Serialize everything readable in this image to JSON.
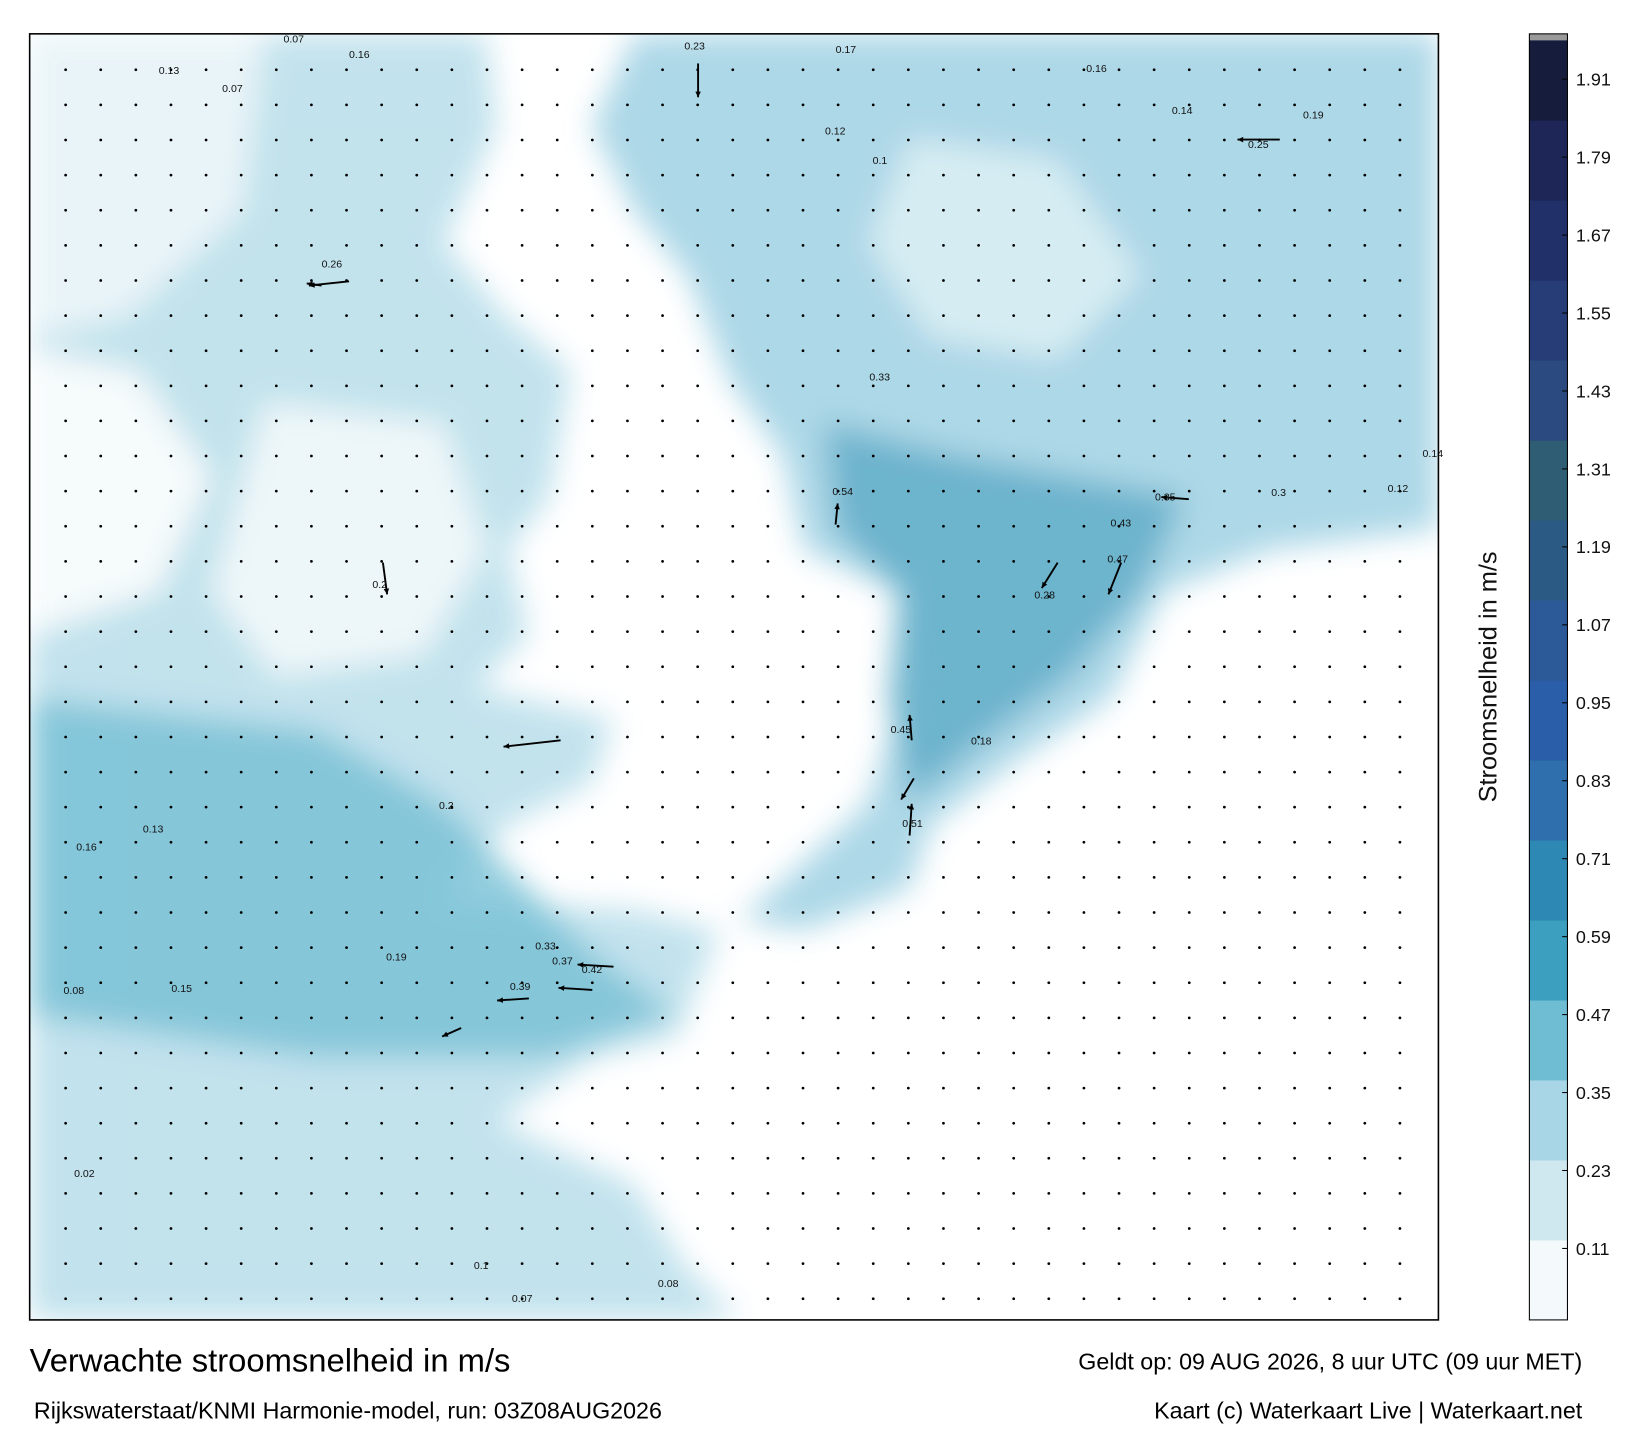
{
  "title": "Verwachte stroomsnelheid in m/s",
  "subtitle": "Rijkswaterstaat/KNMI Harmonie-model, run: 03Z08AUG2026",
  "valid_time": "Geldt op: 09 AUG 2026, 8 uur UTC (09 uur MET)",
  "credit": "Kaart (c) Waterkaart Live | Waterkaart.net",
  "colorbar": {
    "label": "Stroomsnelheid in m/s",
    "clim": [
      0,
      1.97
    ],
    "ticks": [
      0.11,
      0.23,
      0.35,
      0.47,
      0.59,
      0.71,
      0.83,
      0.95,
      1.07,
      1.19,
      1.31,
      1.43,
      1.55,
      1.67,
      1.79,
      1.91
    ],
    "colors": [
      "#f4fafc",
      "#cfe8f0",
      "#a9d6e6",
      "#6fbdd3",
      "#3c9fc0",
      "#2d88b3",
      "#2f6fae",
      "#2a5ea8",
      "#2c5a98",
      "#2b5a85",
      "#2f5d73",
      "#2b4a7f",
      "#263d78",
      "#22306a",
      "#1d2657",
      "#161c3c"
    ]
  },
  "map": {
    "speed_labels": [
      "0.07",
      "0.16",
      "0.23",
      "0.17",
      "0.16",
      "0.13",
      "0.07",
      "0.12",
      "0.1",
      "0.26",
      "0.33",
      "0.54",
      "0.35",
      "0.43",
      "0.45",
      "0.51",
      "0.42",
      "0.37",
      "0.33",
      "0.39",
      "0.19",
      "0.15",
      "0.16",
      "0.13",
      "0.2",
      "0.08",
      "0.02",
      "0.1",
      "0.07",
      "0.08",
      "0.14",
      "0.25",
      "0.19",
      "0.3",
      "0.14",
      "0.18",
      "0.28",
      "0.47",
      "0.2",
      "0.12"
    ]
  }
}
